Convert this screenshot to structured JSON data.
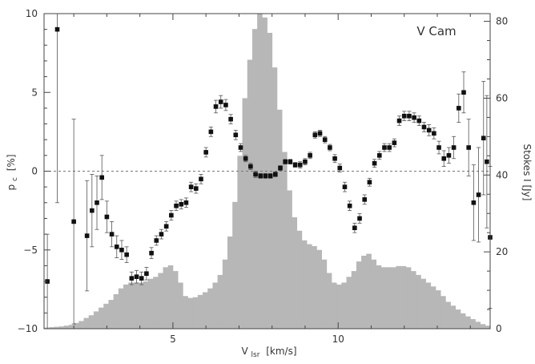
{
  "chart_data": {
    "type": "scatter",
    "annotation": "V Cam",
    "xlabel": "V",
    "xlabel_sub": "lsr",
    "xlabel_unit": "[km/s]",
    "ylabel_left": "p",
    "ylabel_left_sub": "c",
    "ylabel_left_unit": "[%]",
    "ylabel_right": "Stokes I [Jy]",
    "xlim": [
      1.1,
      14.6
    ],
    "ylim_left": [
      -10,
      10
    ],
    "ylim_right": [
      0,
      82
    ],
    "x_ticks": [
      5,
      10
    ],
    "y_ticks_left": [
      -10,
      -5,
      0,
      5,
      10
    ],
    "y_ticks_right": [
      0,
      20,
      40,
      60,
      80
    ],
    "zero_line": true,
    "colors": {
      "histogram": "#b7b7b7",
      "points": "#111111",
      "axes": "#444444"
    },
    "series": [
      {
        "kind": "histogram",
        "axis": "right",
        "x": [
          1.1,
          1.25,
          1.4,
          1.55,
          1.7,
          1.85,
          2.0,
          2.15,
          2.3,
          2.45,
          2.6,
          2.75,
          2.9,
          3.05,
          3.2,
          3.35,
          3.5,
          3.65,
          3.8,
          3.95,
          4.1,
          4.25,
          4.4,
          4.55,
          4.7,
          4.85,
          5.0,
          5.15,
          5.3,
          5.45,
          5.6,
          5.75,
          5.9,
          6.05,
          6.2,
          6.35,
          6.5,
          6.65,
          6.8,
          6.95,
          7.1,
          7.25,
          7.4,
          7.55,
          7.7,
          7.85,
          8.0,
          8.15,
          8.3,
          8.45,
          8.6,
          8.75,
          8.9,
          9.05,
          9.2,
          9.35,
          9.5,
          9.65,
          9.8,
          9.95,
          10.1,
          10.25,
          10.4,
          10.55,
          10.7,
          10.85,
          11.0,
          11.15,
          11.3,
          11.45,
          11.6,
          11.75,
          11.9,
          12.05,
          12.2,
          12.35,
          12.5,
          12.65,
          12.8,
          12.95,
          13.1,
          13.25,
          13.4,
          13.55,
          13.7,
          13.85,
          14.0,
          14.15,
          14.3,
          14.45
        ],
        "values": [
          0.3,
          0.4,
          0.5,
          0.6,
          0.8,
          1.0,
          1.5,
          2.0,
          2.8,
          3.5,
          4.5,
          5.5,
          6.5,
          7.5,
          9,
          10.5,
          11.5,
          12,
          12,
          12,
          12.3,
          13,
          13.5,
          14.5,
          16,
          16.5,
          15,
          12,
          8.5,
          8,
          8.2,
          8.8,
          9.5,
          10.5,
          12,
          14,
          18,
          24,
          33,
          45,
          60,
          70,
          78,
          82,
          81,
          77,
          68,
          57,
          46,
          36,
          29,
          25.5,
          23,
          22,
          21.5,
          20.5,
          18,
          14.5,
          12,
          11.5,
          12,
          13.5,
          15,
          17.5,
          19,
          19.5,
          18,
          16.5,
          16,
          16,
          16,
          16.3,
          16.3,
          16,
          15,
          14,
          13,
          12,
          11,
          10,
          8.5,
          7,
          6,
          5,
          4,
          3.2,
          2.5,
          1.8,
          1.2,
          0.8
        ]
      },
      {
        "kind": "points",
        "axis": "left",
        "name": "",
        "points": [
          {
            "x": 1.2,
            "y": -7.0,
            "err": 3.0
          },
          {
            "x": 1.5,
            "y": 9.0,
            "err": 11.0
          },
          {
            "x": 2.0,
            "y": -3.2,
            "err": 6.5
          },
          {
            "x": 2.4,
            "y": -4.1,
            "err": 3.5
          },
          {
            "x": 2.55,
            "y": -2.5,
            "err": 2.3
          },
          {
            "x": 2.7,
            "y": -2.0,
            "err": 1.7
          },
          {
            "x": 2.85,
            "y": -0.4,
            "err": 1.4
          },
          {
            "x": 3.0,
            "y": -2.9,
            "err": 1.0
          },
          {
            "x": 3.15,
            "y": -4.0,
            "err": 0.8
          },
          {
            "x": 3.3,
            "y": -4.8,
            "err": 0.7
          },
          {
            "x": 3.45,
            "y": -5.0,
            "err": 0.6
          },
          {
            "x": 3.6,
            "y": -5.3,
            "err": 0.5
          },
          {
            "x": 3.75,
            "y": -6.8,
            "err": 0.4
          },
          {
            "x": 3.9,
            "y": -6.7,
            "err": 0.4
          },
          {
            "x": 4.05,
            "y": -6.8,
            "err": 0.4
          },
          {
            "x": 4.2,
            "y": -6.5,
            "err": 0.4
          },
          {
            "x": 4.35,
            "y": -5.2,
            "err": 0.35
          },
          {
            "x": 4.5,
            "y": -4.4,
            "err": 0.3
          },
          {
            "x": 4.65,
            "y": -4.0,
            "err": 0.3
          },
          {
            "x": 4.8,
            "y": -3.5,
            "err": 0.3
          },
          {
            "x": 4.95,
            "y": -2.8,
            "err": 0.3
          },
          {
            "x": 5.1,
            "y": -2.2,
            "err": 0.3
          },
          {
            "x": 5.25,
            "y": -2.1,
            "err": 0.3
          },
          {
            "x": 5.4,
            "y": -2.0,
            "err": 0.3
          },
          {
            "x": 5.55,
            "y": -1.0,
            "err": 0.3
          },
          {
            "x": 5.7,
            "y": -1.1,
            "err": 0.3
          },
          {
            "x": 5.85,
            "y": -0.5,
            "err": 0.3
          },
          {
            "x": 6.0,
            "y": 1.2,
            "err": 0.3
          },
          {
            "x": 6.15,
            "y": 2.5,
            "err": 0.3
          },
          {
            "x": 6.3,
            "y": 4.1,
            "err": 0.4
          },
          {
            "x": 6.45,
            "y": 4.4,
            "err": 0.4
          },
          {
            "x": 6.6,
            "y": 4.2,
            "err": 0.35
          },
          {
            "x": 6.75,
            "y": 3.3,
            "err": 0.3
          },
          {
            "x": 6.9,
            "y": 2.3,
            "err": 0.3
          },
          {
            "x": 7.05,
            "y": 1.5,
            "err": 0.25
          },
          {
            "x": 7.2,
            "y": 0.8,
            "err": 0.2
          },
          {
            "x": 7.35,
            "y": 0.3,
            "err": 0.2
          },
          {
            "x": 7.5,
            "y": -0.2,
            "err": 0.2
          },
          {
            "x": 7.65,
            "y": -0.3,
            "err": 0.15
          },
          {
            "x": 7.8,
            "y": -0.3,
            "err": 0.15
          },
          {
            "x": 7.95,
            "y": -0.3,
            "err": 0.15
          },
          {
            "x": 8.1,
            "y": -0.2,
            "err": 0.15
          },
          {
            "x": 8.25,
            "y": 0.2,
            "err": 0.15
          },
          {
            "x": 8.4,
            "y": 0.6,
            "err": 0.15
          },
          {
            "x": 8.55,
            "y": 0.6,
            "err": 0.15
          },
          {
            "x": 8.7,
            "y": 0.4,
            "err": 0.15
          },
          {
            "x": 8.85,
            "y": 0.4,
            "err": 0.2
          },
          {
            "x": 9.0,
            "y": 0.6,
            "err": 0.2
          },
          {
            "x": 9.15,
            "y": 1.0,
            "err": 0.2
          },
          {
            "x": 9.3,
            "y": 2.3,
            "err": 0.2
          },
          {
            "x": 9.45,
            "y": 2.4,
            "err": 0.2
          },
          {
            "x": 9.6,
            "y": 2.0,
            "err": 0.2
          },
          {
            "x": 9.75,
            "y": 1.5,
            "err": 0.2
          },
          {
            "x": 9.9,
            "y": 0.8,
            "err": 0.25
          },
          {
            "x": 10.05,
            "y": 0.2,
            "err": 0.25
          },
          {
            "x": 10.2,
            "y": -1.0,
            "err": 0.3
          },
          {
            "x": 10.35,
            "y": -2.2,
            "err": 0.3
          },
          {
            "x": 10.5,
            "y": -3.6,
            "err": 0.3
          },
          {
            "x": 10.65,
            "y": -3.0,
            "err": 0.3
          },
          {
            "x": 10.8,
            "y": -1.8,
            "err": 0.3
          },
          {
            "x": 10.95,
            "y": -0.7,
            "err": 0.25
          },
          {
            "x": 11.1,
            "y": 0.5,
            "err": 0.25
          },
          {
            "x": 11.25,
            "y": 1.0,
            "err": 0.25
          },
          {
            "x": 11.4,
            "y": 1.5,
            "err": 0.25
          },
          {
            "x": 11.55,
            "y": 1.5,
            "err": 0.25
          },
          {
            "x": 11.7,
            "y": 1.8,
            "err": 0.25
          },
          {
            "x": 11.85,
            "y": 3.2,
            "err": 0.3
          },
          {
            "x": 12.0,
            "y": 3.5,
            "err": 0.3
          },
          {
            "x": 12.15,
            "y": 3.5,
            "err": 0.3
          },
          {
            "x": 12.3,
            "y": 3.4,
            "err": 0.3
          },
          {
            "x": 12.45,
            "y": 3.2,
            "err": 0.3
          },
          {
            "x": 12.6,
            "y": 2.8,
            "err": 0.3
          },
          {
            "x": 12.75,
            "y": 2.6,
            "err": 0.35
          },
          {
            "x": 12.9,
            "y": 2.4,
            "err": 0.35
          },
          {
            "x": 13.05,
            "y": 1.5,
            "err": 0.4
          },
          {
            "x": 13.2,
            "y": 0.8,
            "err": 0.5
          },
          {
            "x": 13.35,
            "y": 1.0,
            "err": 0.5
          },
          {
            "x": 13.5,
            "y": 1.5,
            "err": 0.7
          },
          {
            "x": 13.65,
            "y": 4.0,
            "err": 0.9
          },
          {
            "x": 13.8,
            "y": 5.0,
            "err": 1.3
          },
          {
            "x": 13.95,
            "y": 1.5,
            "err": 1.8
          },
          {
            "x": 14.1,
            "y": -2.0,
            "err": 2.4
          },
          {
            "x": 14.25,
            "y": -1.5,
            "err": 3.0
          },
          {
            "x": 14.4,
            "y": 2.1,
            "err": 3.6
          },
          {
            "x": 14.5,
            "y": 0.6,
            "err": 4.2
          },
          {
            "x": 14.6,
            "y": -4.2,
            "err": 4.5
          }
        ]
      }
    ]
  }
}
